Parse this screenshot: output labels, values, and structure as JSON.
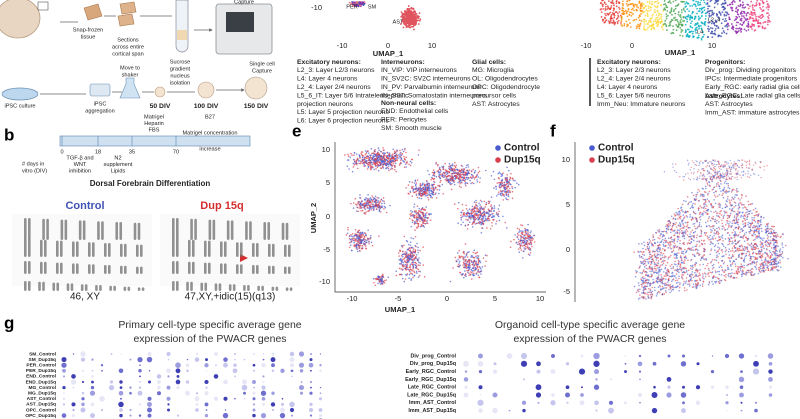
{
  "panel_a": {
    "brain_steps": {
      "snap_frozen": [
        "Snap-frozen",
        "tissue"
      ],
      "sections": [
        "Sections",
        "across entire",
        "cortical span"
      ],
      "sucrose": [
        "Sucrose",
        "gradient",
        "nucleus",
        "isolation"
      ],
      "nucleus_capture": "Capture",
      "single_cell": [
        "Single cell",
        "Capture"
      ]
    },
    "organoid_steps": {
      "ipsc_culture": "iPSC culture",
      "aggregation": [
        "iPSC",
        "aggregation"
      ],
      "shaker": [
        "Move to",
        "shaker"
      ],
      "div50": "50 DIV",
      "div100": "100 DIV",
      "div150": "150 DIV"
    }
  },
  "panel_b": {
    "label": "b",
    "days_label": [
      "# days in",
      "vitro (DIV)"
    ],
    "days": [
      "0",
      "18",
      "35",
      "70"
    ],
    "steps": [
      [
        "TGF-β and",
        "WNT",
        "inhibition"
      ],
      [
        "N2",
        "supplement",
        "Lipids"
      ],
      [
        "Matrigel",
        "Heparin",
        "FBS"
      ],
      [
        "B27",
        "Matrigel concentration",
        "increase"
      ]
    ],
    "title": "Dorsal Forebrain Differentiation"
  },
  "karyotype": {
    "control": "Control",
    "dup": "Dup 15q",
    "control_karyotype": "46, XY",
    "dup_karyotype": "47,XY,+idic(15)(q13)"
  },
  "panel_c": {
    "xticks": [
      "-10",
      "0",
      "10"
    ],
    "ytick": "-10",
    "xlabel": "UMAP_1",
    "clusters": [
      "PER",
      "SM",
      "AST"
    ],
    "legend": [
      {
        "title": "Excitatory neurons:",
        "items": [
          "L2_3: Layer L2/3 neurons",
          "L4: Layer 4 neurons",
          "L2_4: Layer 2/4 neurons",
          "L5_6_IT: Layer 5/6 Intratelencephalic",
          "projection neurons",
          "L5: Layer 5 projection neurons",
          "L6: Layer 6 projection neurons"
        ]
      },
      {
        "title": "Interneurons:",
        "items": [
          "IN_VIP: VIP interneurons",
          "IN_SV2C: SV2C interneurons",
          "IN_PV: Parvalbumin interneurons",
          "IN_SST: Somatostatin interneurons"
        ]
      },
      {
        "title": "Non-neural cells:",
        "items": [
          "END: Endothelial cells",
          "PER: Pericytes",
          "SM: Smooth muscle"
        ]
      },
      {
        "title": "Glial cells:",
        "items": [
          "MG: Microglia",
          "OL: Oligodendrocytes",
          "OPC: Oligodendrocyte",
          "precursor cells",
          "AST: Astrocytes"
        ]
      }
    ]
  },
  "panel_d": {
    "xticks": [
      "-10",
      "0",
      "10"
    ],
    "xlabel": "UMAP_1",
    "clusters": [
      "L2_4",
      "L4"
    ],
    "legend": [
      {
        "title": "Excitatory neurons:",
        "items": [
          "L2_3: Layer 2/3 neurons",
          "L2_4: Layer 2/4 neurons",
          "L4: Layer 4 neurons",
          "L5_6: Layer 5/6 neurons",
          "Imm_Neu: Immature neurons"
        ]
      },
      {
        "title": "Progenitors:",
        "items": [
          "Div_prog: Dividing progenitors",
          "IPCs: Intermediate progenitors",
          "Early_RGC: early radial glia cells",
          "Late_RGC: Late radial glia cells"
        ]
      },
      {
        "title": "Astrocytes:",
        "items": [
          "AST: Astrocytes",
          "Imm_AST: immature astrocytes"
        ]
      }
    ]
  },
  "panel_e": {
    "label": "e",
    "legend": [
      "Control",
      "Dup15q"
    ],
    "yticks": [
      "10",
      "5",
      "0",
      "-5",
      "-10"
    ],
    "xticks": [
      "-10",
      "-5",
      "0",
      "5",
      "10"
    ],
    "xlabel": "UMAP_1",
    "ylabel": "UMAP_2"
  },
  "panel_f": {
    "label": "f",
    "legend": [
      "Control",
      "Dup15q"
    ],
    "yticks": [
      "10",
      "5",
      "0",
      "-5"
    ]
  },
  "panel_g": {
    "label": "g",
    "primary_title": [
      "Primary cell-type specific average gene",
      "expression of the PWACR genes"
    ],
    "primary_rows": [
      "SM_Control",
      "SM_Dup15q",
      "PER_Control",
      "PER_Dup15q",
      "END_Control",
      "END_Dup15q",
      "MG_Control",
      "MG_Dup15q",
      "AST_Control",
      "AST_Dup15q",
      "OPC_Control",
      "OPC_Dup15q",
      "OL_Control"
    ],
    "organoid_title": [
      "Organoid cell-type specific average gene",
      "expression of the PWACR genes"
    ],
    "organoid_rows": [
      "Div_prog_Control",
      "Div_prog_Dup15q",
      "Early_RGC_Control",
      "Early_RGC_Dup15q",
      "Late_RGC_Control",
      "Late_RGC_Dup15q",
      "Imm_AST_Control",
      "Imm_AST_Dup15q"
    ]
  }
}
